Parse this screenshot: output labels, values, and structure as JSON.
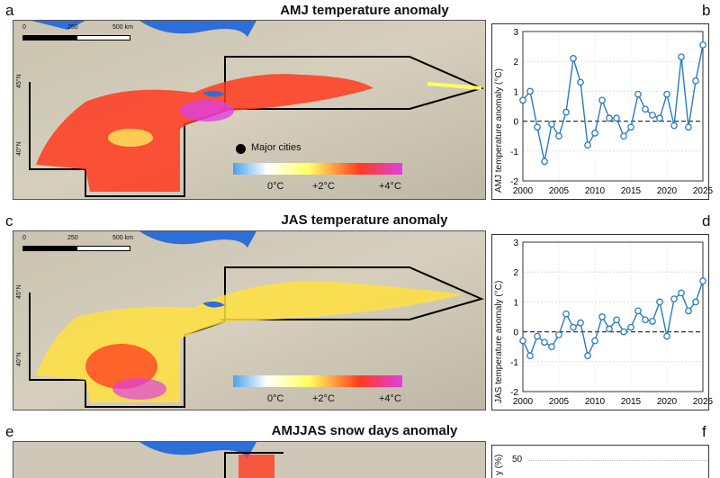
{
  "panels": {
    "a": {
      "letter": "a",
      "title": "AMJ temperature anomaly"
    },
    "b": {
      "letter": "b"
    },
    "c": {
      "letter": "c",
      "title": "JAS temperature anomaly"
    },
    "d": {
      "letter": "d"
    },
    "e": {
      "letter": "e",
      "title": "AMJJAS snow days anomaly"
    },
    "f": {
      "letter": "f"
    }
  },
  "map": {
    "scale_labels": [
      "0",
      "250",
      "500 km"
    ],
    "lat_labels": [
      "45°N",
      "40°N"
    ],
    "legend_city": "Major cities",
    "colorbar_ticks": [
      "0°C",
      "+2°C",
      "+4°C"
    ],
    "colors": {
      "cold": "#4aa3e8",
      "warm_low": "#ffff60",
      "warm_mid": "#ff3a1e",
      "warm_high": "#e040e0",
      "water": "#2e6ed8"
    }
  },
  "chart_data": [
    {
      "type": "line",
      "ylabel": "AMJ temperature anomaly (°C)",
      "x": [
        2000,
        2001,
        2002,
        2003,
        2004,
        2005,
        2006,
        2007,
        2008,
        2009,
        2010,
        2011,
        2012,
        2013,
        2014,
        2015,
        2016,
        2017,
        2018,
        2019,
        2020,
        2021,
        2022,
        2023,
        2024,
        2025
      ],
      "values": [
        0.7,
        1.0,
        -0.2,
        -1.35,
        -0.1,
        -0.5,
        0.3,
        2.1,
        1.3,
        -0.8,
        -0.4,
        0.7,
        0.1,
        0.1,
        -0.5,
        -0.2,
        0.9,
        0.4,
        0.2,
        0.1,
        0.9,
        -0.15,
        2.15,
        -0.2,
        1.35,
        2.55
      ],
      "xlim": [
        2000,
        2025
      ],
      "ylim": [
        -2,
        3
      ],
      "xticks": [
        "2000",
        "2005",
        "2010",
        "2015",
        "2020",
        "2025"
      ],
      "yticks": [
        "-2",
        "-1",
        "0",
        "1",
        "2",
        "3"
      ],
      "grid": true,
      "color": "#2a7bbf"
    },
    {
      "type": "line",
      "ylabel": "JAS temperature anomaly (°C)",
      "x": [
        2000,
        2001,
        2002,
        2003,
        2004,
        2005,
        2006,
        2007,
        2008,
        2009,
        2010,
        2011,
        2012,
        2013,
        2014,
        2015,
        2016,
        2017,
        2018,
        2019,
        2020,
        2021,
        2022,
        2023,
        2024,
        2025
      ],
      "values": [
        -0.3,
        -0.8,
        -0.15,
        -0.35,
        -0.5,
        -0.1,
        0.6,
        0.15,
        0.3,
        -0.8,
        -0.3,
        0.5,
        0.1,
        0.4,
        0.0,
        0.15,
        0.7,
        0.4,
        0.35,
        1.0,
        -0.15,
        1.1,
        1.3,
        0.7,
        1.0,
        1.7
      ],
      "xlim": [
        2000,
        2025
      ],
      "ylim": [
        -2,
        3
      ],
      "xticks": [
        "2000",
        "2005",
        "2010",
        "2015",
        "2020",
        "2025"
      ],
      "yticks": [
        "-2",
        "-1",
        "0",
        "1",
        "2",
        "3"
      ],
      "grid": true,
      "color": "#2a7bbf"
    }
  ],
  "panel_f": {
    "ylabel_partial": "y (%)",
    "ytick": "50"
  }
}
